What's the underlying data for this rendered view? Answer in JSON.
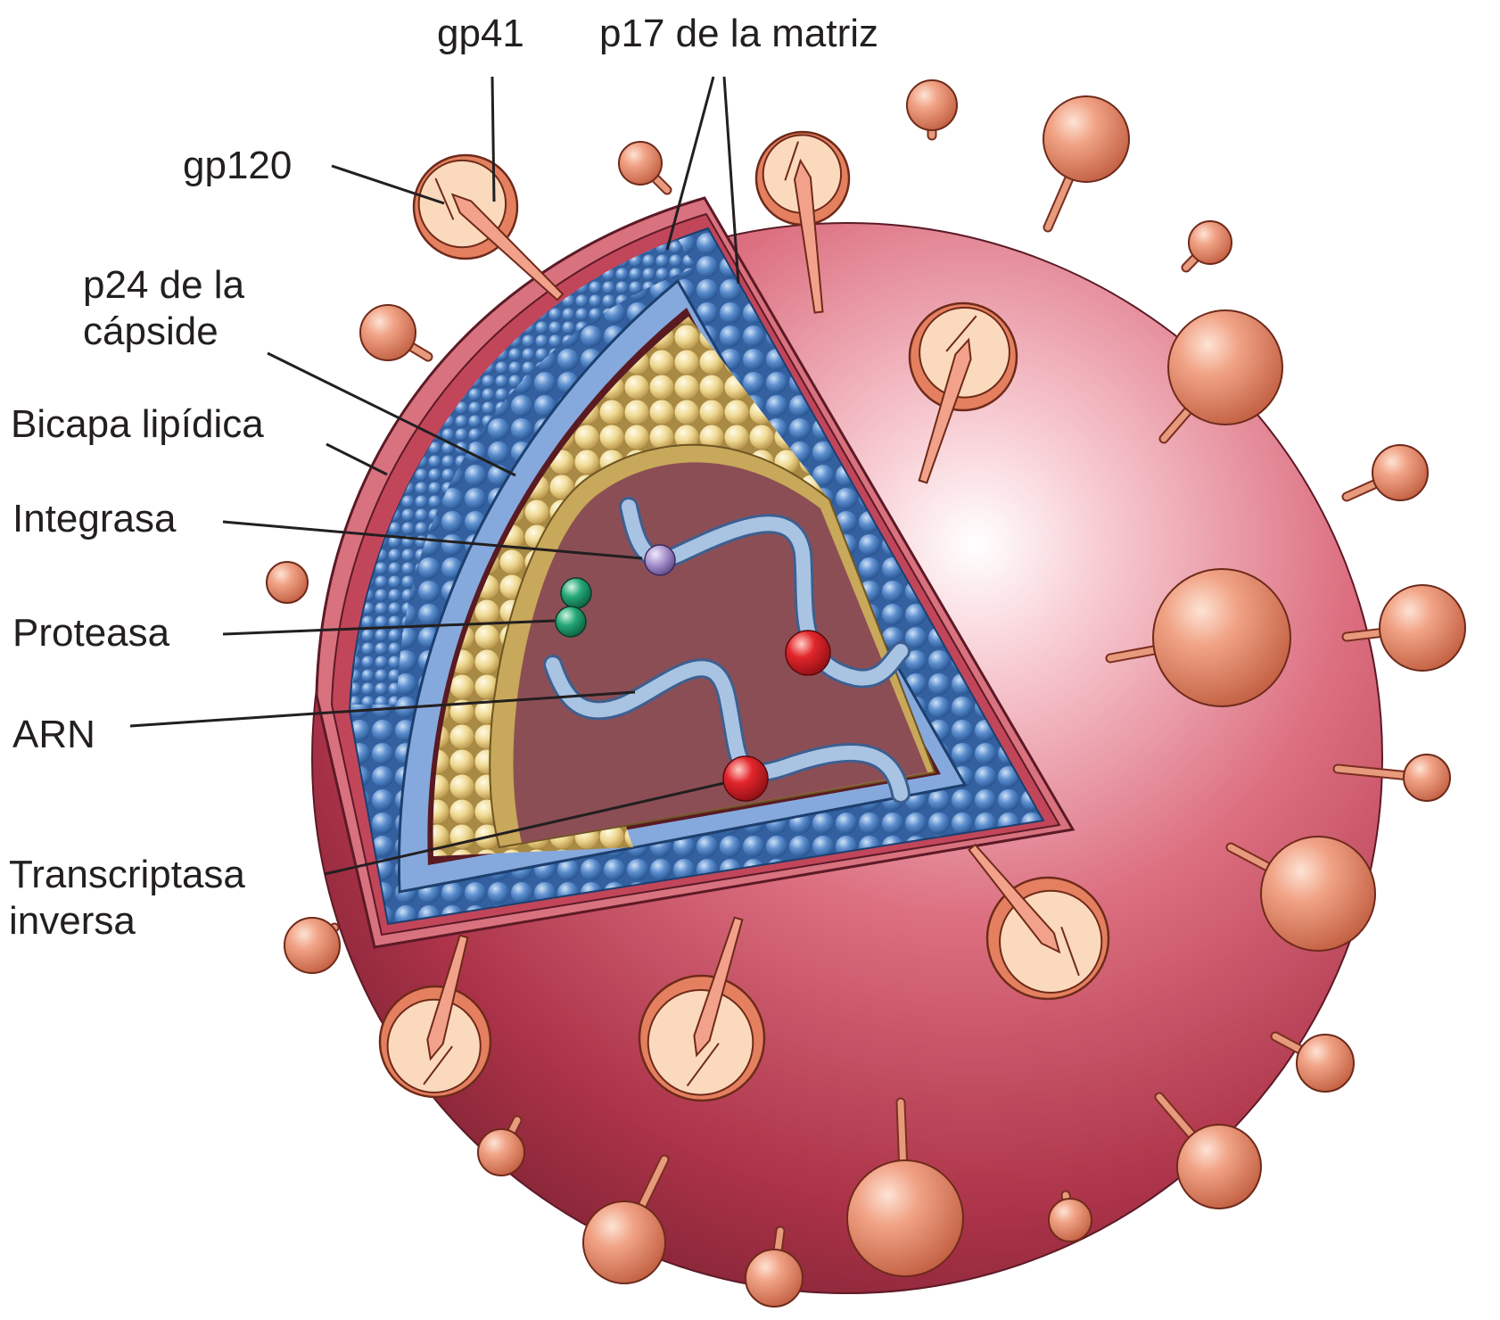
{
  "labels": {
    "gp41": "gp41",
    "p17": "p17 de la matriz",
    "gp120": "gp120",
    "p24": [
      "p24 de la",
      "cápside"
    ],
    "bicapa": "Bicapa lipídica",
    "integrasa": "Integrasa",
    "proteasa": "Proteasa",
    "arn": "ARN",
    "transcriptasa": [
      "Transcriptasa",
      "inversa"
    ]
  },
  "colors": {
    "envelope": "#c2465a",
    "envelope_dark": "#7e2233",
    "envelope_light": "#f7c9d0",
    "lipid_rim": "#d9727f",
    "matrix_blue": "#4f7ec0",
    "matrix_blue_light": "#9fc2ea",
    "capsid_band": "#86a9dd",
    "capsid_yellow": "#e6d08a",
    "capsid_yellow_light": "#fbf0c2",
    "core_interior": "#8c4e55",
    "rna_ribbon": "#a9c3e3",
    "integrase": "#9c86c2",
    "protease": "#1f8f6a",
    "reverse_transcriptase": "#d42024",
    "spike_head": "#e68e6d",
    "spike_cup": "#fbd9bd",
    "leader_line": "#231f20"
  }
}
